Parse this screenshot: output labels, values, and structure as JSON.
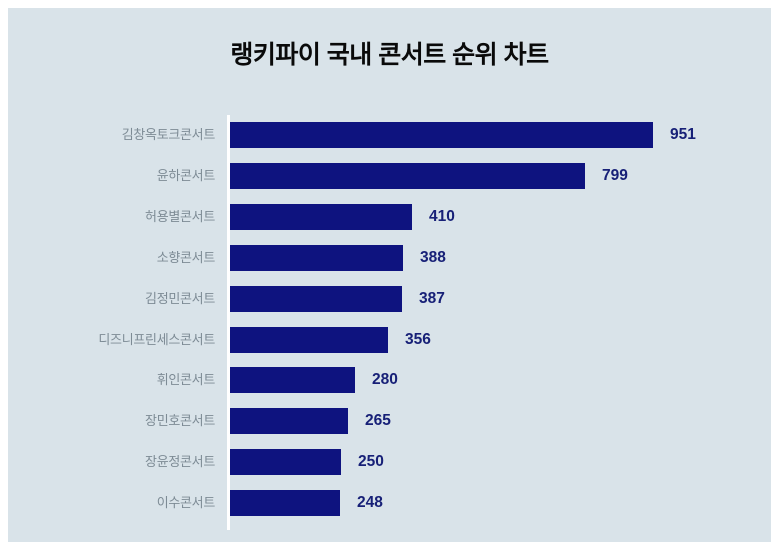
{
  "title": "랭키파이 국내 콘서트 순위 차트",
  "colors": {
    "page_background": "#ffffff",
    "panel_background": "#d9e3e9",
    "bar": "#0e137f",
    "value_text": "#172077",
    "category_text": "#7d8b95",
    "title_text": "#0a0a0a",
    "axis_line": "#ffffff"
  },
  "chart_data": {
    "type": "bar",
    "orientation": "horizontal",
    "title": "랭키파이 국내 콘서트 순위 차트",
    "categories": [
      "김창옥토크콘서트",
      "윤하콘서트",
      "허용별콘서트",
      "소향콘서트",
      "김정민콘서트",
      "디즈니프린세스콘서트",
      "휘인콘서트",
      "장민호콘서트",
      "장윤정콘서트",
      "이수콘서트"
    ],
    "values": [
      951,
      799,
      410,
      388,
      387,
      356,
      280,
      265,
      250,
      248
    ],
    "value_labels": [
      "951",
      "799",
      "410",
      "388",
      "387",
      "356",
      "280",
      "265",
      "250",
      "248"
    ],
    "xlabel": "",
    "ylabel": "",
    "grid": false,
    "legend": false,
    "data_labels_position": "outside-end"
  }
}
